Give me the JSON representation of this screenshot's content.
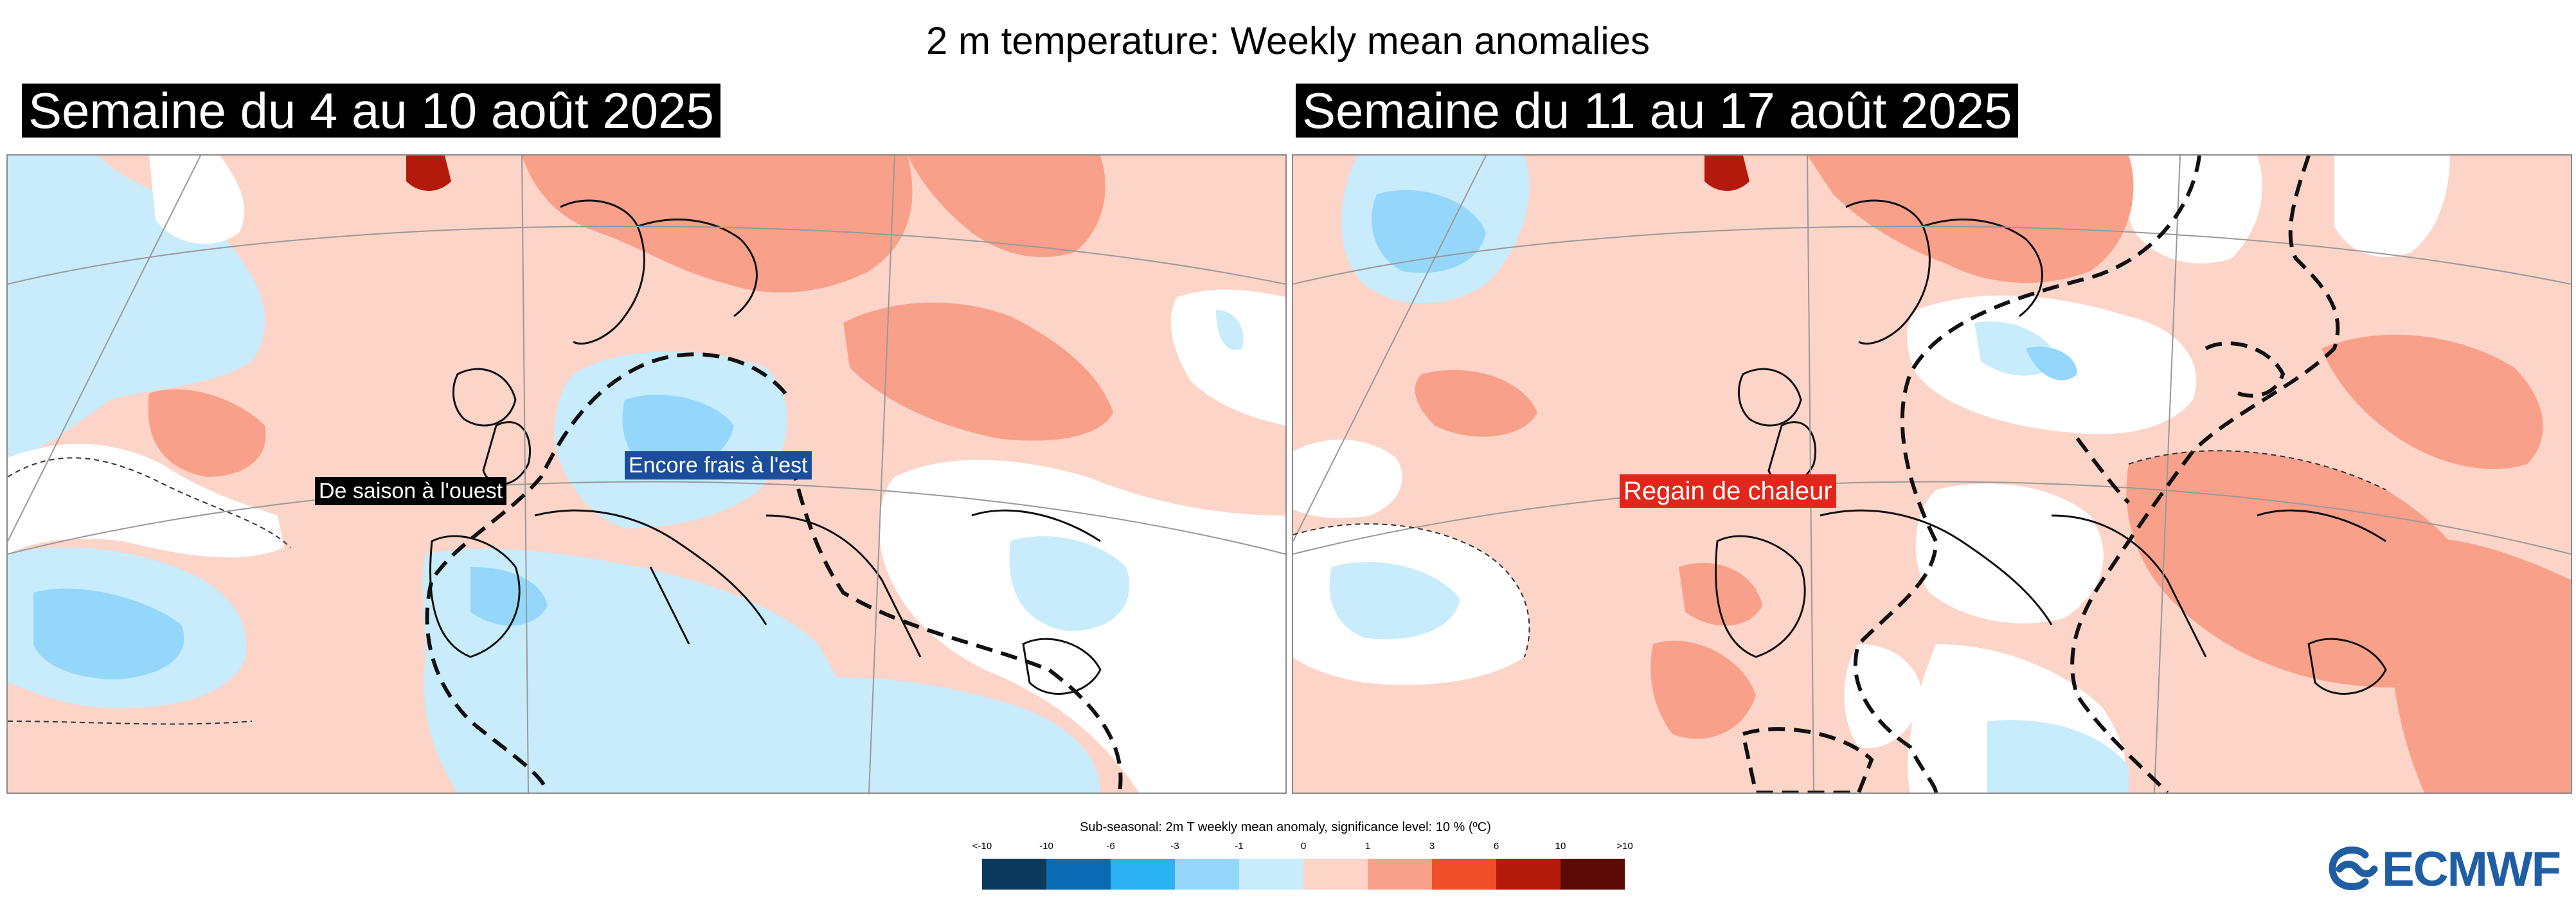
{
  "title": "2 m temperature: Weekly mean anomalies",
  "panels": [
    {
      "label": "Semaine du 4 au 10 août 2025",
      "annotations": [
        {
          "text": "De saison à l'ouest",
          "style": "black"
        },
        {
          "text": "Encore frais à l'est",
          "style": "blue"
        }
      ]
    },
    {
      "label": "Semaine du 11 au 17 août 2025",
      "annotations": [
        {
          "text": "Regain de chaleur",
          "style": "red"
        }
      ]
    }
  ],
  "colorbar": {
    "title": "Sub-seasonal: 2m T weekly mean anomaly, significance level: 10 % (ºC)",
    "tick_labels": [
      "<-10",
      "-10",
      "-6",
      "-3",
      "-1",
      "0",
      "1",
      "3",
      "6",
      "10",
      ">10"
    ],
    "colors": [
      "#0b3a5c",
      "#0a6ab3",
      "#2ab2f3",
      "#95d7fa",
      "#c8ecfb",
      "#ffffff",
      "#fcd4c8",
      "#f9a08a",
      "#f14e2a",
      "#b41a0c",
      "#5c0a06"
    ]
  },
  "annotation_colors": {
    "black": "#000000",
    "blue": "#1c4d9a",
    "red": "#e1261c"
  },
  "logo": {
    "text": "ECMWF",
    "icon": "ecmwf-logo-icon",
    "color": "#1f5ea3"
  }
}
